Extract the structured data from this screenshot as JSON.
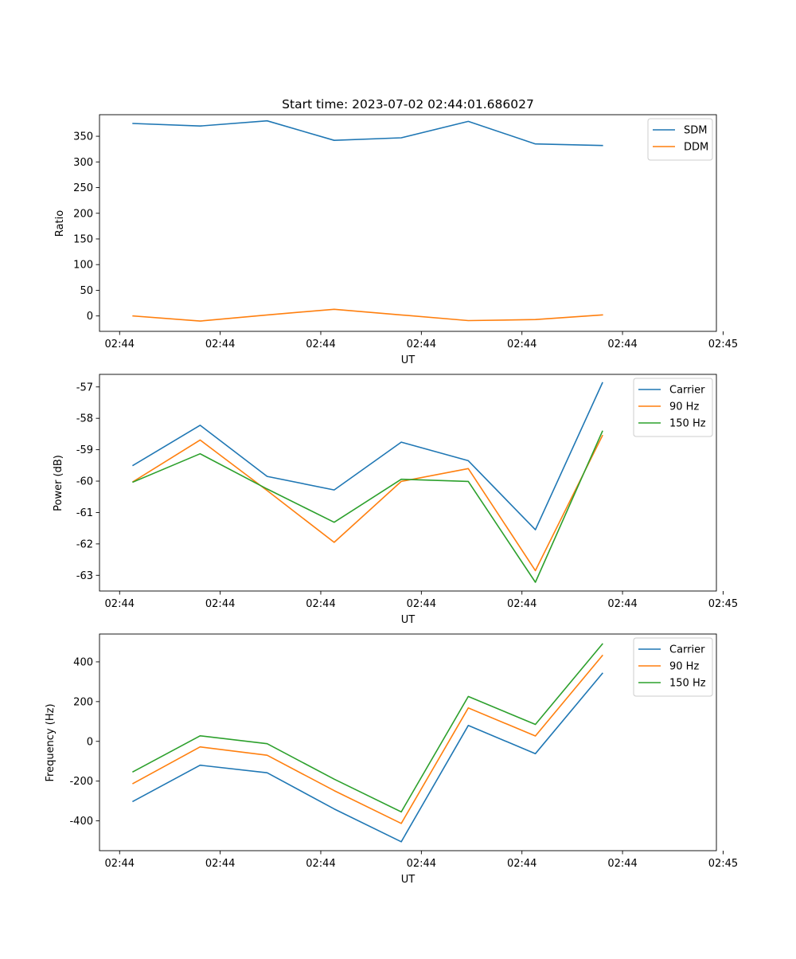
{
  "colors": {
    "blue": "#1f77b4",
    "orange": "#ff7f0e",
    "green": "#2ca02c"
  },
  "chart_data": [
    {
      "type": "line",
      "title": "Start time: 2023-07-02 02:44:01.686027",
      "xlabel": "UT",
      "ylabel": "Ratio",
      "xlim": [
        0,
        9.2
      ],
      "ylim": [
        -30,
        392
      ],
      "x": [
        0.5,
        1.5,
        2.5,
        3.5,
        4.5,
        5.5,
        6.5,
        7.5
      ],
      "xticks": [
        0.3,
        1.8,
        3.3,
        4.8,
        6.3,
        7.8,
        9.3
      ],
      "xtick_labels": [
        "02:44",
        "02:44",
        "02:44",
        "02:44",
        "02:44",
        "02:44",
        "02:45"
      ],
      "yticks": [
        0,
        50,
        100,
        150,
        200,
        250,
        300,
        350
      ],
      "ytick_labels": [
        "0",
        "50",
        "100",
        "150",
        "200",
        "250",
        "300",
        "350"
      ],
      "legend_position": "top-right",
      "series": [
        {
          "name": "SDM",
          "color": "#1f77b4",
          "values": [
            375,
            370,
            380,
            342,
            347,
            379,
            335,
            332
          ]
        },
        {
          "name": "DDM",
          "color": "#ff7f0e",
          "values": [
            0,
            -10,
            2,
            13,
            2,
            -9,
            -7,
            2
          ]
        }
      ]
    },
    {
      "type": "line",
      "title": "",
      "xlabel": "UT",
      "ylabel": "Power (dB)",
      "xlim": [
        0,
        9.2
      ],
      "ylim": [
        -63.5,
        -56.6
      ],
      "x": [
        0.5,
        1.5,
        2.5,
        3.5,
        4.5,
        5.5,
        6.5,
        7.5
      ],
      "xticks": [
        0.3,
        1.8,
        3.3,
        4.8,
        6.3,
        7.8,
        9.3
      ],
      "xtick_labels": [
        "02:44",
        "02:44",
        "02:44",
        "02:44",
        "02:44",
        "02:44",
        "02:45"
      ],
      "yticks": [
        -63,
        -62,
        -61,
        -60,
        -59,
        -58,
        -57
      ],
      "ytick_labels": [
        "-63",
        "-62",
        "-61",
        "-60",
        "-59",
        "-58",
        "-57"
      ],
      "legend_position": "top-right",
      "series": [
        {
          "name": "Carrier",
          "color": "#1f77b4",
          "values": [
            -59.5,
            -58.22,
            -59.85,
            -60.28,
            -58.76,
            -59.35,
            -61.55,
            -56.87
          ]
        },
        {
          "name": "90 Hz",
          "color": "#ff7f0e",
          "values": [
            -60.02,
            -58.69,
            -60.3,
            -61.95,
            -60.01,
            -59.6,
            -62.85,
            -58.55
          ]
        },
        {
          "name": "150 Hz",
          "color": "#2ca02c",
          "values": [
            -60.03,
            -59.13,
            -60.25,
            -61.31,
            -59.94,
            -60.01,
            -63.22,
            -58.41
          ]
        }
      ]
    },
    {
      "type": "line",
      "title": "",
      "xlabel": "UT",
      "ylabel": "Frequency (Hz)",
      "xlim": [
        0,
        9.2
      ],
      "ylim": [
        -550,
        540
      ],
      "x": [
        0.5,
        1.5,
        2.5,
        3.5,
        4.5,
        5.5,
        6.5,
        7.5
      ],
      "xticks": [
        0.3,
        1.8,
        3.3,
        4.8,
        6.3,
        7.8,
        9.3
      ],
      "xtick_labels": [
        "02:44",
        "02:44",
        "02:44",
        "02:44",
        "02:44",
        "02:44",
        "02:45"
      ],
      "yticks": [
        -400,
        -200,
        0,
        200,
        400
      ],
      "ytick_labels": [
        "-400",
        "-200",
        "0",
        "200",
        "400"
      ],
      "legend_position": "top-right",
      "series": [
        {
          "name": "Carrier",
          "color": "#1f77b4",
          "values": [
            -302,
            -120,
            -158,
            -340,
            -505,
            80,
            -62,
            342
          ]
        },
        {
          "name": "90 Hz",
          "color": "#ff7f0e",
          "values": [
            -212,
            -28,
            -70,
            -248,
            -413,
            168,
            27,
            432
          ]
        },
        {
          "name": "150 Hz",
          "color": "#2ca02c",
          "values": [
            -153,
            28,
            -12,
            -190,
            -355,
            226,
            85,
            490
          ]
        }
      ]
    }
  ]
}
